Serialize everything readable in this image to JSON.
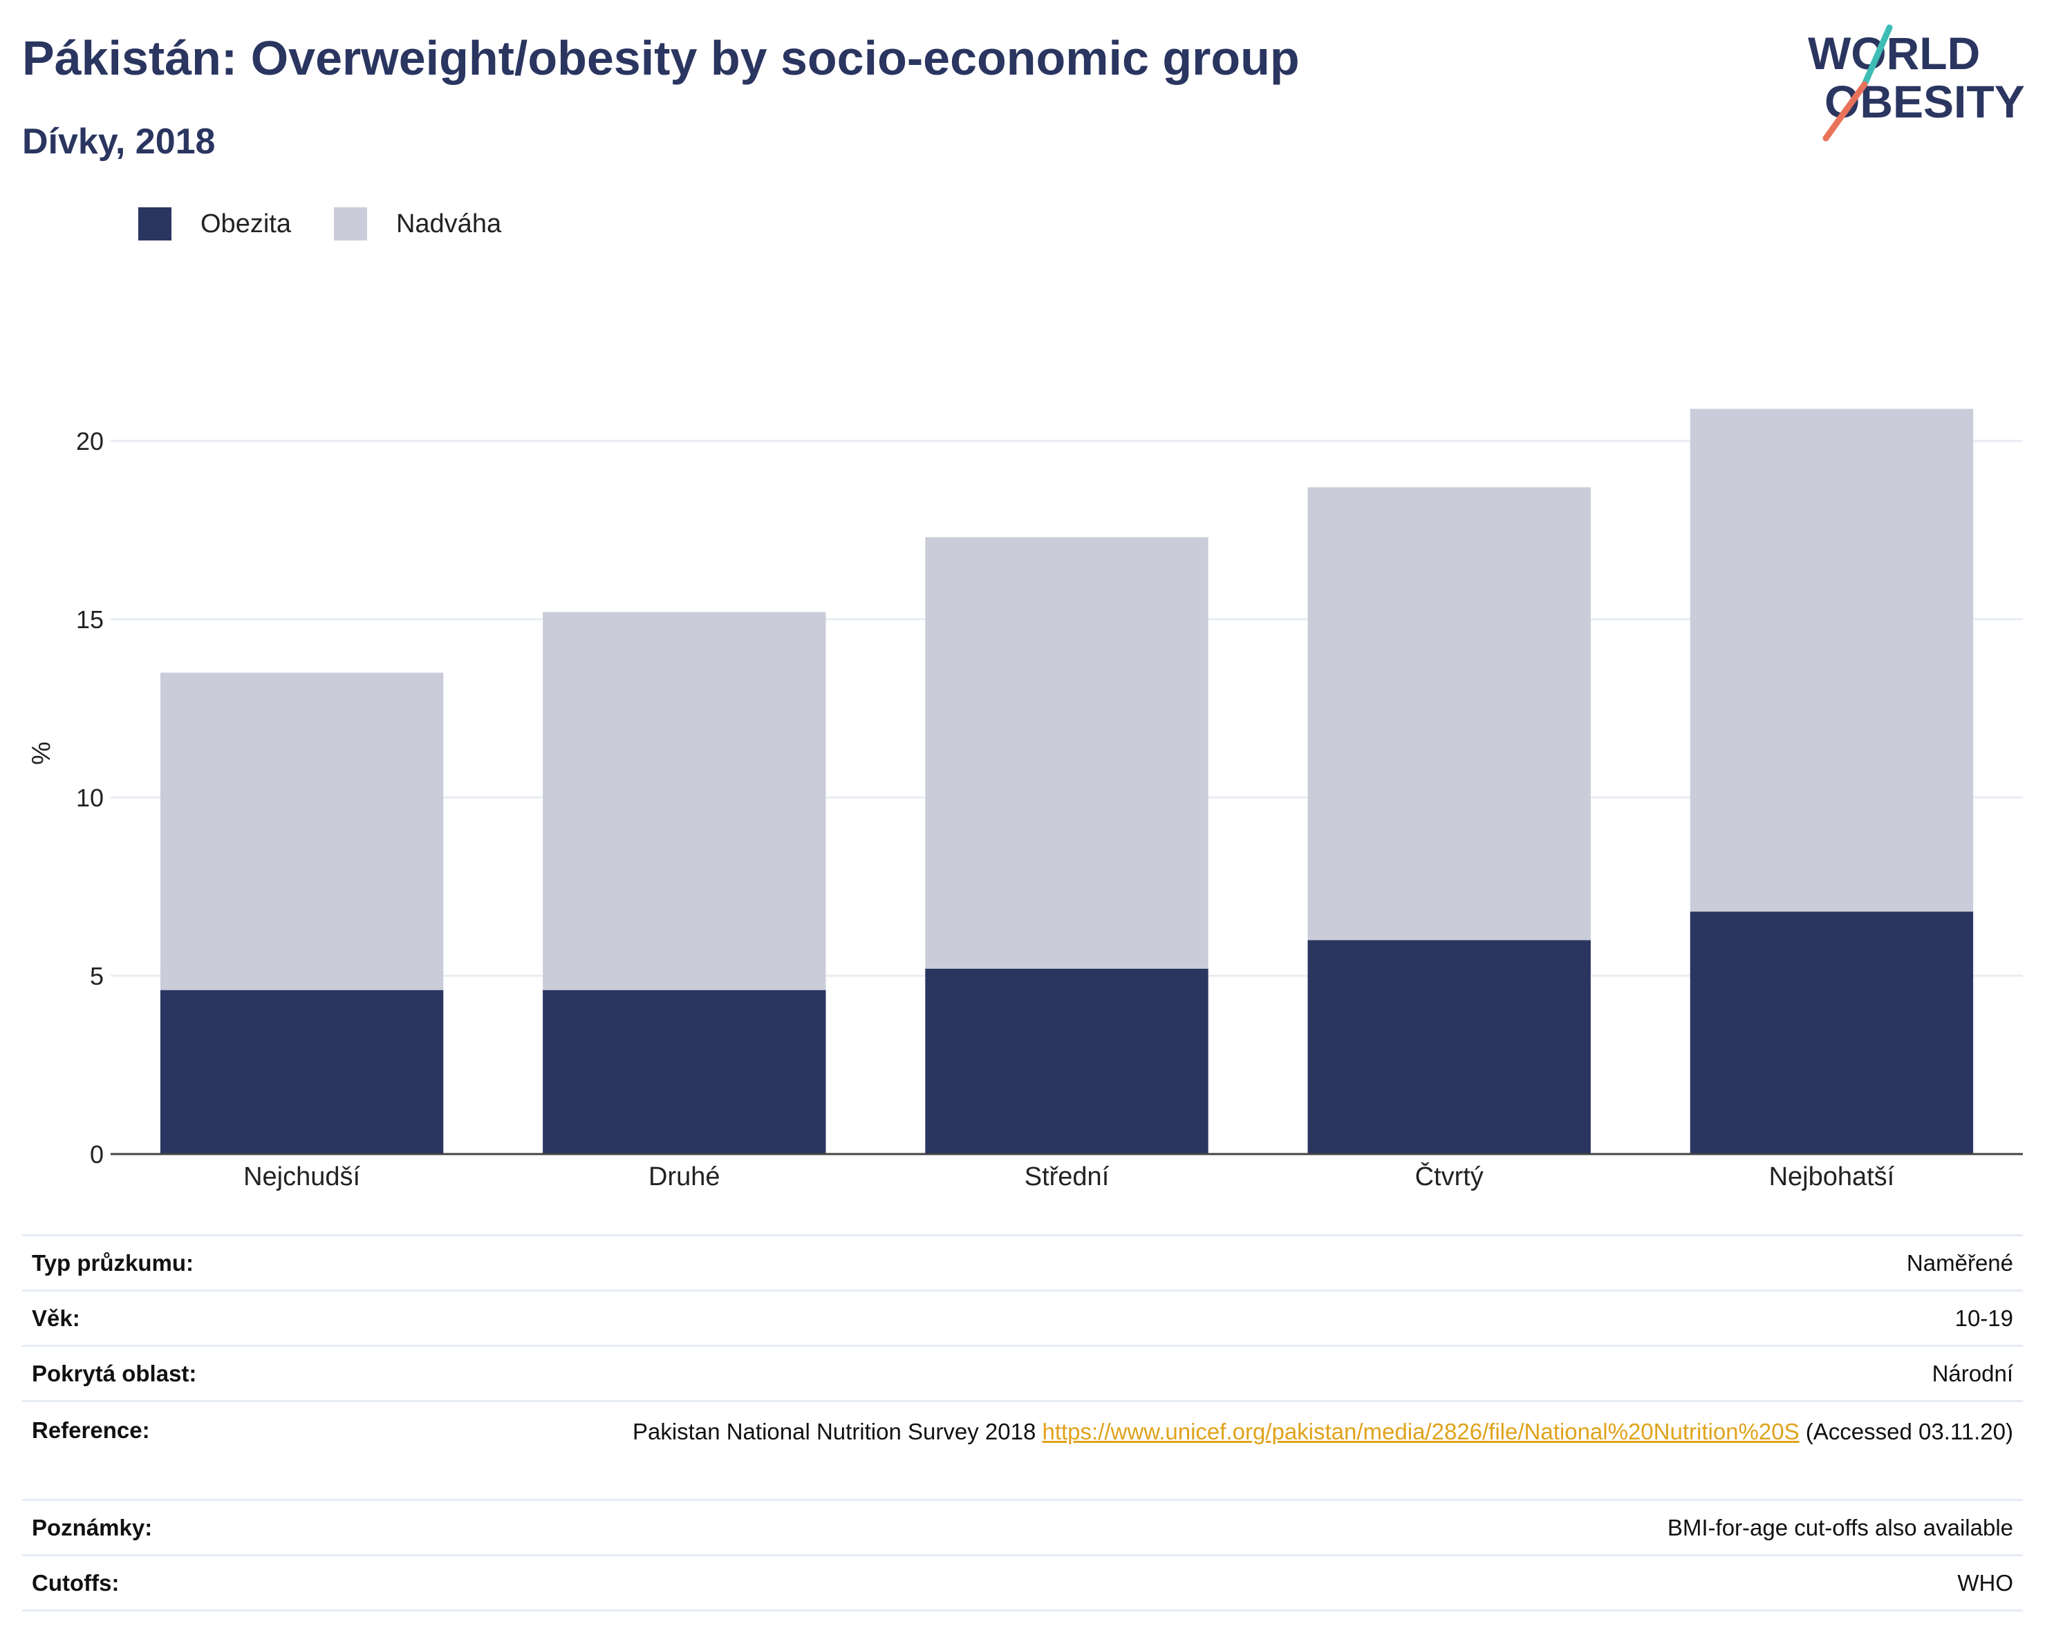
{
  "header": {
    "title": "Pákistán: Overweight/obesity by socio-economic group",
    "subtitle": "Dívky, 2018"
  },
  "logo": {
    "line1": "WORLD",
    "line2": "OBESITY",
    "slash_colors": [
      "#3dbdb6",
      "#e8735a"
    ]
  },
  "colors": {
    "obesity": "#2a3560",
    "overweight": "#cacdd9",
    "title": "#2a3560",
    "link": "#e0a21b"
  },
  "chart_data": {
    "type": "bar",
    "stacked": true,
    "categories": [
      "Nejchudší",
      "Druhé",
      "Střední",
      "Čtvrtý",
      "Nejbohatší"
    ],
    "series": [
      {
        "name": "Obezita",
        "values": [
          4.6,
          4.6,
          5.2,
          6.0,
          6.8
        ]
      },
      {
        "name": "Nadváha",
        "values": [
          8.9,
          10.6,
          12.1,
          12.7,
          14.1
        ]
      }
    ],
    "totals": [
      13.5,
      15.2,
      17.3,
      18.7,
      20.9
    ],
    "ylabel": "%",
    "xlabel": "",
    "ylim": [
      0,
      21.9
    ],
    "yticks": [
      0,
      5,
      10,
      15,
      20
    ],
    "grid": true,
    "legend_position": "top-left"
  },
  "info": {
    "rows": [
      {
        "label": "Typ průzkumu:",
        "value": "Naměřené"
      },
      {
        "label": "Věk:",
        "value": "10-19"
      },
      {
        "label": "Pokrytá oblast:",
        "value": "Národní"
      },
      {
        "label": "Reference:",
        "value_prefix": "Pakistan National Nutrition Survey 2018",
        "link": "https://www.unicef.org/pakistan/media/2826/file/National%20Nutrition%20S",
        "value_suffix": "(Accessed 03.11.20)"
      },
      {
        "label": "Poznámky:",
        "value": "BMI-for-age cut-offs also available"
      },
      {
        "label": "Cutoffs:",
        "value": "WHO"
      }
    ]
  }
}
